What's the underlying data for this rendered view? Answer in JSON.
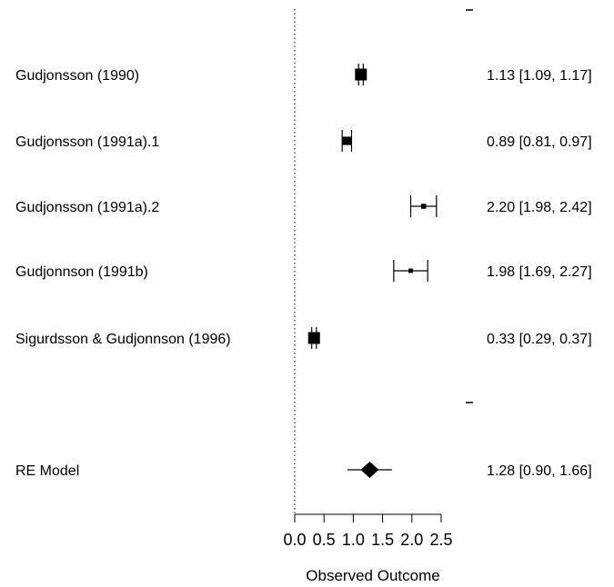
{
  "chart_data": {
    "type": "forest",
    "xlabel": "Observed Outcome",
    "xticks": [
      0.0,
      0.5,
      1.0,
      1.5,
      2.0,
      2.5
    ],
    "xtick_labels": [
      "0.0",
      "0.5",
      "1.0",
      "1.5",
      "2.0",
      "2.5"
    ],
    "xlim": [
      0.0,
      2.5
    ],
    "reference_line": 0,
    "studies": [
      {
        "label": "Gudjonsson (1990)",
        "estimate": 1.13,
        "lower": 1.09,
        "upper": 1.17,
        "ci_text": "1.13 [1.09, 1.17]"
      },
      {
        "label": "Gudjonsson (1991a).1",
        "estimate": 0.89,
        "lower": 0.81,
        "upper": 0.97,
        "ci_text": "0.89 [0.81, 0.97]"
      },
      {
        "label": "Gudjonsson (1991a).2",
        "estimate": 2.2,
        "lower": 1.98,
        "upper": 2.42,
        "ci_text": "2.20 [1.98, 2.42]"
      },
      {
        "label": "Gudjonnson (1991b)",
        "estimate": 1.98,
        "lower": 1.69,
        "upper": 2.27,
        "ci_text": "1.98 [1.69, 2.27]"
      },
      {
        "label": "Sigurdsson & Gudjonnson (1996)",
        "estimate": 0.33,
        "lower": 0.29,
        "upper": 0.37,
        "ci_text": "0.33 [0.29, 0.37]"
      }
    ],
    "summary": {
      "label": "RE Model",
      "estimate": 1.28,
      "lower": 0.9,
      "upper": 1.66,
      "ci_text": "1.28 [0.90, 1.66]"
    }
  }
}
